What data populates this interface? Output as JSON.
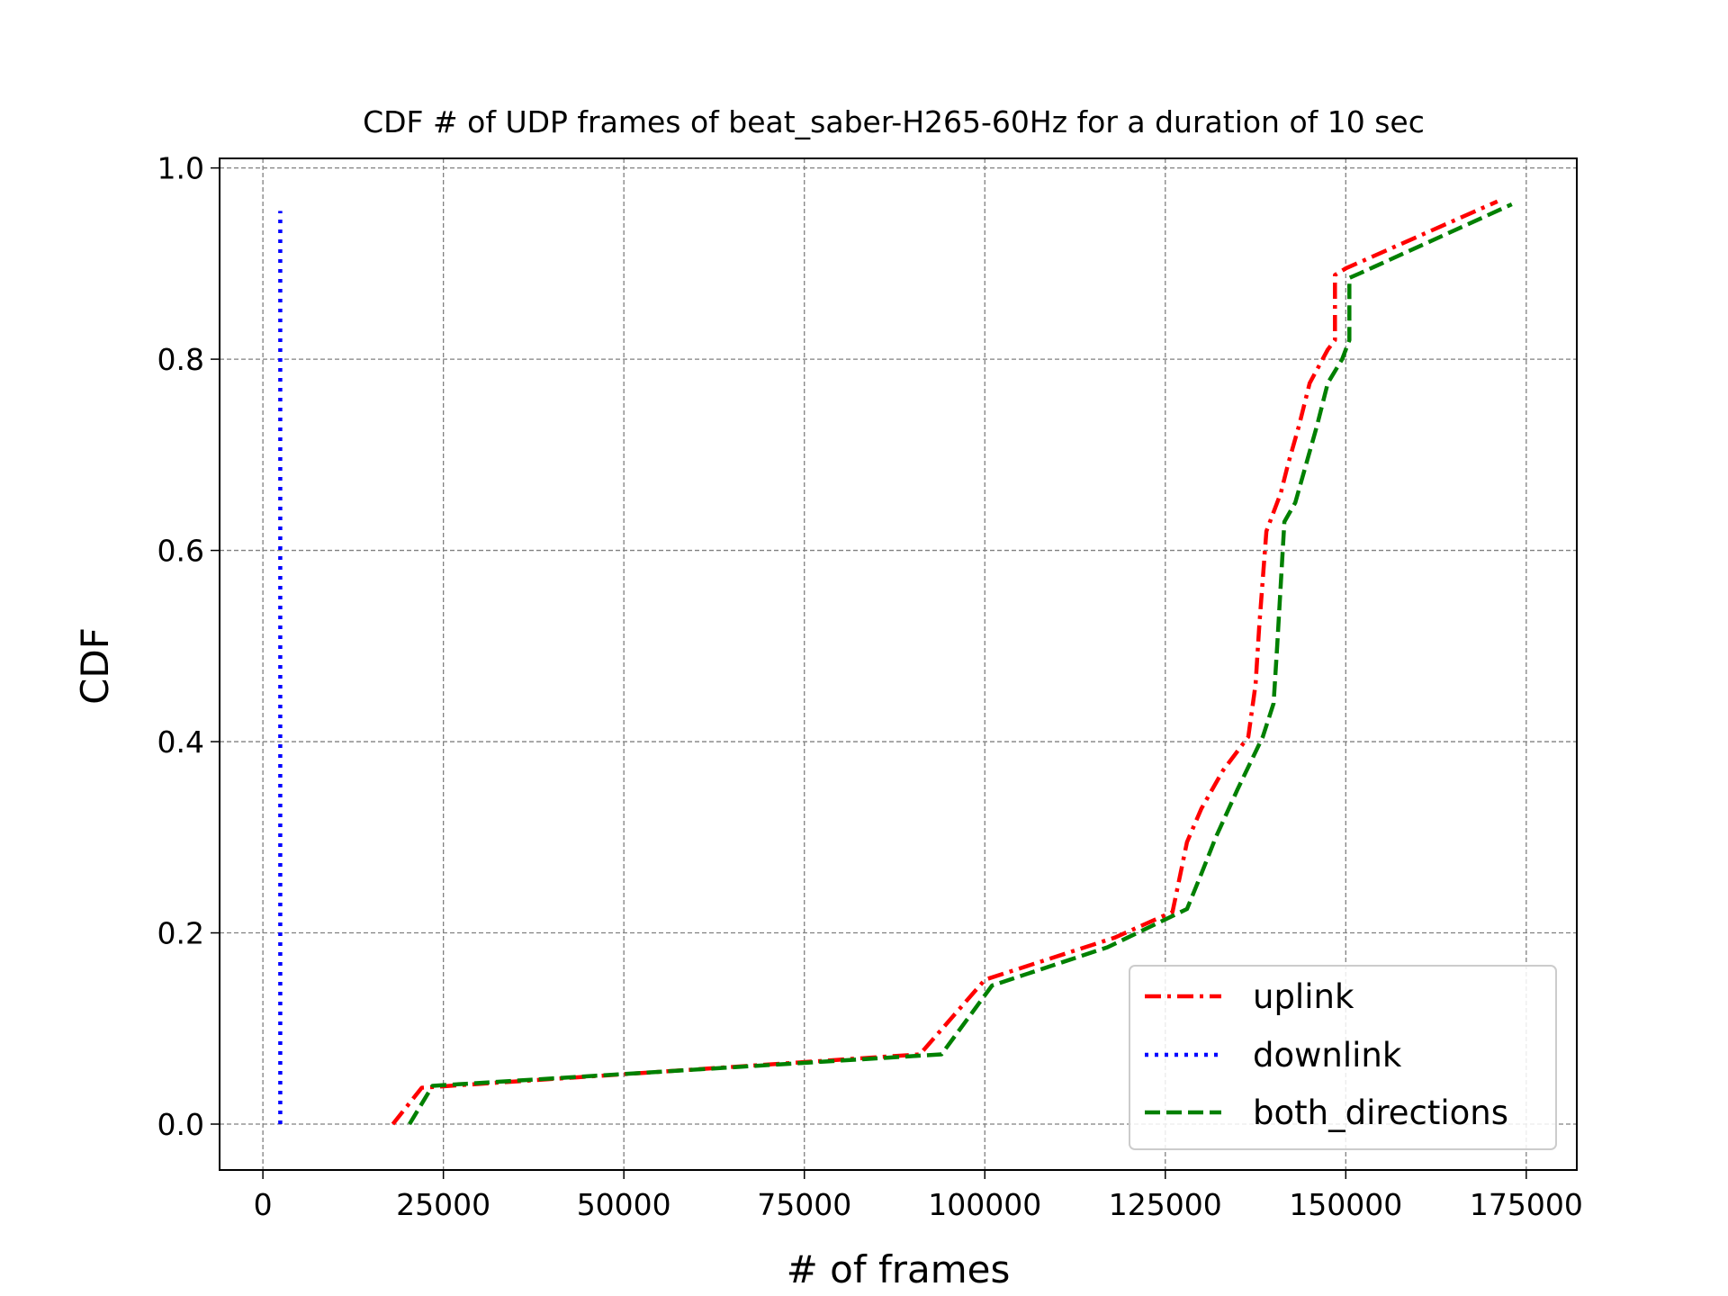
{
  "chart_data": {
    "type": "line",
    "title": "CDF # of UDP frames of beat_saber-H265-60Hz for a duration of 10 sec",
    "xlabel": "# of frames",
    "ylabel": "CDF",
    "xlim": [
      -6000,
      182000
    ],
    "ylim": [
      -0.048,
      1.01
    ],
    "xticks": [
      0,
      25000,
      50000,
      75000,
      100000,
      125000,
      150000,
      175000
    ],
    "xtick_labels": [
      "0",
      "25000",
      "50000",
      "75000",
      "100000",
      "125000",
      "150000",
      "175000"
    ],
    "yticks": [
      0.0,
      0.2,
      0.4,
      0.6,
      0.8,
      1.0
    ],
    "ytick_labels": [
      "0.0",
      "0.2",
      "0.4",
      "0.6",
      "0.8",
      "1.0"
    ],
    "grid": true,
    "legend_position": "lower-right",
    "series": [
      {
        "name": "uplink",
        "color": "#ff0000",
        "style": "dashdot",
        "x": [
          18000,
          22000,
          91000,
          100000,
          118000,
          126000,
          128000,
          130000,
          133000,
          136500,
          137500,
          138000,
          139000,
          141000,
          142000,
          143500,
          145000,
          147500,
          148500,
          148500,
          150000,
          171000
        ],
        "y": [
          0.0,
          0.038,
          0.073,
          0.151,
          0.195,
          0.222,
          0.295,
          0.33,
          0.37,
          0.405,
          0.46,
          0.52,
          0.62,
          0.66,
          0.69,
          0.73,
          0.775,
          0.81,
          0.82,
          0.888,
          0.895,
          0.965
        ]
      },
      {
        "name": "downlink",
        "color": "#0000ff",
        "style": "dotted",
        "x": [
          2400,
          2400
        ],
        "y": [
          0.0,
          0.955
        ]
      },
      {
        "name": "both_directions",
        "color": "#008000",
        "style": "dashed",
        "x": [
          20300,
          23500,
          94000,
          101000,
          117000,
          128000,
          130000,
          132000,
          135000,
          138500,
          140000,
          140500,
          141500,
          143000,
          144500,
          146000,
          147500,
          149500,
          150500,
          150500,
          152000,
          173000
        ],
        "y": [
          0.0,
          0.04,
          0.073,
          0.145,
          0.185,
          0.225,
          0.262,
          0.3,
          0.35,
          0.405,
          0.44,
          0.5,
          0.63,
          0.65,
          0.69,
          0.73,
          0.775,
          0.8,
          0.82,
          0.885,
          0.89,
          0.962
        ]
      }
    ]
  }
}
